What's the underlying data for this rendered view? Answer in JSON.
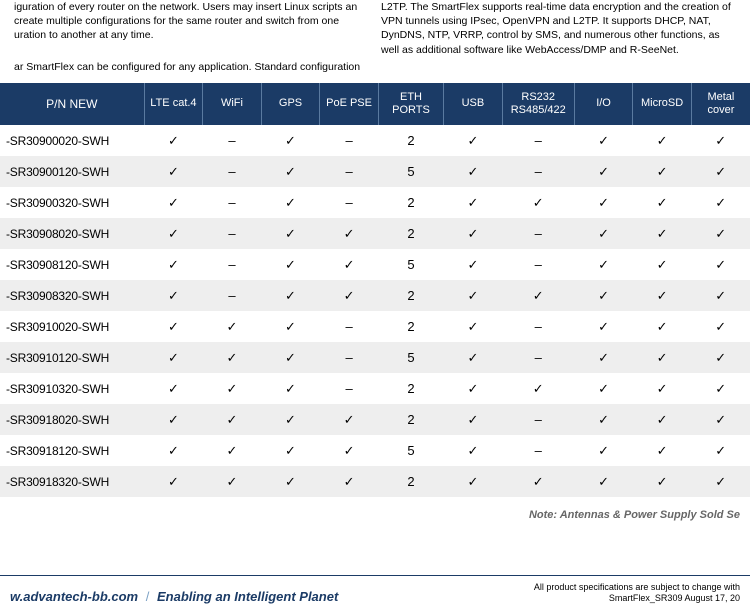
{
  "top_text": {
    "left": "iguration of every router on the network. Users may insert Linux scripts an create multiple configurations for the same router and switch from one uration to another at any time.",
    "right": "L2TP. The SmartFlex supports real-time data encryption and the creation of VPN tunnels using IPsec, OpenVPN and L2TP. It supports DHCP, NAT, DynDNS, NTP, VRRP, control by SMS, and numerous other functions, as well as additional software like WebAccess/DMP and R-SeeNet.",
    "subline": "ar SmartFlex can be configured for any application. Standard configuration"
  },
  "table": {
    "headers": [
      "P/N NEW",
      "LTE cat.4",
      "WiFi",
      "GPS",
      "PoE PSE",
      "ETH PORTS",
      "USB",
      "RS232\nRS485/422",
      "I/O",
      "MicroSD",
      "Metal\ncover"
    ],
    "header_classes": [
      "pn",
      "col-narrow",
      "col-narrow",
      "col-narrow",
      "col-narrow",
      "col-eth",
      "col-narrow",
      "col-rs",
      "col-narrow",
      "col-narrow",
      "col-narrow"
    ],
    "rows": [
      [
        "-SR30900020-SWH",
        "✓",
        "–",
        "✓",
        "–",
        "2",
        "✓",
        "–",
        "✓",
        "✓",
        "✓"
      ],
      [
        "-SR30900120-SWH",
        "✓",
        "–",
        "✓",
        "–",
        "5",
        "✓",
        "–",
        "✓",
        "✓",
        "✓"
      ],
      [
        "-SR30900320-SWH",
        "✓",
        "–",
        "✓",
        "–",
        "2",
        "✓",
        "✓",
        "✓",
        "✓",
        "✓"
      ],
      [
        "-SR30908020-SWH",
        "✓",
        "–",
        "✓",
        "✓",
        "2",
        "✓",
        "–",
        "✓",
        "✓",
        "✓"
      ],
      [
        "-SR30908120-SWH",
        "✓",
        "–",
        "✓",
        "✓",
        "5",
        "✓",
        "–",
        "✓",
        "✓",
        "✓"
      ],
      [
        "-SR30908320-SWH",
        "✓",
        "–",
        "✓",
        "✓",
        "2",
        "✓",
        "✓",
        "✓",
        "✓",
        "✓"
      ],
      [
        "-SR30910020-SWH",
        "✓",
        "✓",
        "✓",
        "–",
        "2",
        "✓",
        "–",
        "✓",
        "✓",
        "✓"
      ],
      [
        "-SR30910120-SWH",
        "✓",
        "✓",
        "✓",
        "–",
        "5",
        "✓",
        "–",
        "✓",
        "✓",
        "✓"
      ],
      [
        "-SR30910320-SWH",
        "✓",
        "✓",
        "✓",
        "–",
        "2",
        "✓",
        "✓",
        "✓",
        "✓",
        "✓"
      ],
      [
        "-SR30918020-SWH",
        "✓",
        "✓",
        "✓",
        "✓",
        "2",
        "✓",
        "–",
        "✓",
        "✓",
        "✓"
      ],
      [
        "-SR30918120-SWH",
        "✓",
        "✓",
        "✓",
        "✓",
        "5",
        "✓",
        "–",
        "✓",
        "✓",
        "✓"
      ],
      [
        "-SR30918320-SWH",
        "✓",
        "✓",
        "✓",
        "✓",
        "2",
        "✓",
        "✓",
        "✓",
        "✓",
        "✓"
      ]
    ]
  },
  "note": "Note: Antennas & Power Supply Sold Se",
  "footer": {
    "url": "w.advantech-bb.com",
    "slash": "/",
    "tagline": "Enabling an Intelligent Planet",
    "right_line1": "All product specifications are subject to change with",
    "right_line2": "SmartFlex_SR309 August 17, 20"
  },
  "style": {
    "header_bg": "#1b3b66",
    "header_fg": "#ffffff",
    "row_even_bg": "#eeeeee",
    "row_odd_bg": "#ffffff",
    "footer_border": "#1b3b66"
  }
}
